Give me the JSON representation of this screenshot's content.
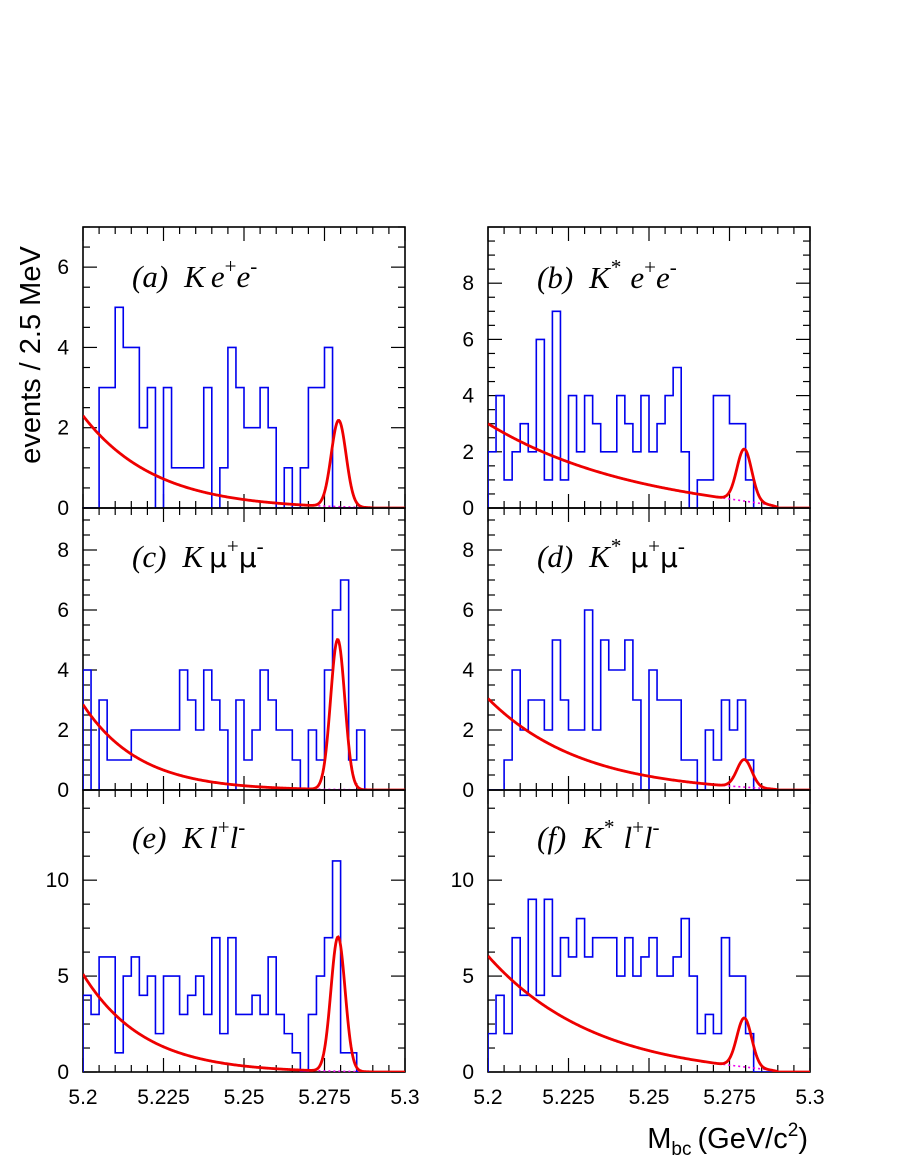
{
  "chart_data": {
    "type": "histogram",
    "ylabel": "events / 2.5 MeV",
    "xlabel_main": "M",
    "xlabel_sub": "bc",
    "xlabel_unit": "(GeV/c",
    "xlabel_unit_sup": "2",
    "xlabel_unit_close": ")",
    "xlim": [
      5.2,
      5.3
    ],
    "xticks": [
      5.2,
      5.225,
      5.25,
      5.275,
      5.3
    ],
    "xtick_labels": [
      "5.2",
      "5.225",
      "5.25",
      "5.275",
      "5.3"
    ],
    "bin_width": 0.0025,
    "bin_start": 5.2,
    "colors": {
      "histogram": "#0000ee",
      "fit": "#ee0000",
      "background": "#ee00ee"
    },
    "panels": [
      {
        "id": "a",
        "label": {
          "tag": "(a)",
          "particle": "K",
          "sep": "",
          "lepton": "e",
          "sup1": "+",
          "lepton2": "e",
          "sup2": "-"
        },
        "ylim": [
          0,
          7
        ],
        "yticks": [
          0,
          2,
          4,
          6
        ],
        "ytick_labels": [
          "0",
          "2",
          "4",
          "6"
        ],
        "counts": [
          0,
          0,
          3,
          3,
          5,
          4,
          4,
          2,
          3,
          0,
          3,
          1,
          1,
          1,
          1,
          3,
          0,
          1,
          4,
          3,
          2,
          2,
          3,
          2,
          0,
          1,
          0,
          1,
          3,
          3,
          4,
          0,
          0,
          0,
          0,
          0,
          0,
          0,
          0,
          0
        ],
        "fit": {
          "norm": 2.3,
          "slope": 1.0,
          "peak": 2.15,
          "mean": 5.2794,
          "sigma": 0.0023
        }
      },
      {
        "id": "b",
        "label": {
          "tag": "(b)",
          "particle": "K",
          "star": "*",
          "lepton": "e",
          "sup1": "+",
          "lepton2": "e",
          "sup2": "-"
        },
        "ylim": [
          0,
          10
        ],
        "yticks": [
          0,
          2,
          4,
          6,
          8
        ],
        "ytick_labels": [
          "0",
          "2",
          "4",
          "6",
          "8"
        ],
        "counts": [
          2,
          4,
          1,
          2,
          3,
          2,
          6,
          1,
          7,
          1,
          4,
          2,
          4,
          3,
          2,
          2,
          4,
          3,
          2,
          4,
          2,
          3,
          4,
          5,
          2,
          0,
          1,
          1,
          4,
          4,
          3,
          3,
          1,
          0,
          0,
          0,
          0,
          0,
          0,
          0
        ],
        "fit": {
          "norm": 3.0,
          "slope": 0.45,
          "peak": 1.85,
          "mean": 5.2796,
          "sigma": 0.0023
        }
      },
      {
        "id": "c",
        "label": {
          "tag": "(c)",
          "particle": "K",
          "lepton": "μ",
          "sup1": "+",
          "lepton2": "μ",
          "sup2": "-"
        },
        "ylim": [
          0,
          9.4
        ],
        "yticks": [
          0,
          2,
          4,
          6,
          8
        ],
        "ytick_labels": [
          "0",
          "2",
          "4",
          "6",
          "8"
        ],
        "counts": [
          4,
          0,
          3,
          1,
          1,
          1,
          2,
          2,
          2,
          2,
          2,
          2,
          4,
          3,
          2,
          4,
          3,
          2,
          0,
          3,
          1,
          2,
          4,
          3,
          2,
          2,
          1,
          0,
          2,
          1,
          4,
          6,
          7,
          1,
          2,
          0,
          0,
          0,
          0,
          0
        ],
        "fit": {
          "norm": 2.85,
          "slope": 1.3,
          "peak": 5.0,
          "mean": 5.2791,
          "sigma": 0.0022
        }
      },
      {
        "id": "d",
        "label": {
          "tag": "(d)",
          "particle": "K",
          "star": "*",
          "lepton": "μ",
          "sup1": "+",
          "lepton2": "μ",
          "sup2": "-"
        },
        "ylim": [
          0,
          9.4
        ],
        "yticks": [
          0,
          2,
          4,
          6,
          8
        ],
        "ytick_labels": [
          "0",
          "2",
          "4",
          "6",
          "8"
        ],
        "counts": [
          0,
          0,
          1,
          4,
          2,
          3,
          3,
          2,
          5,
          3,
          2,
          2,
          6,
          2,
          5,
          4,
          4,
          5,
          3,
          0,
          4,
          3,
          3,
          3,
          1,
          1,
          0,
          2,
          1,
          3,
          2,
          3,
          1,
          0,
          0,
          0,
          0,
          0,
          0,
          0
        ],
        "fit": {
          "norm": 3.05,
          "slope": 0.75,
          "peak": 0.92,
          "mean": 5.2796,
          "sigma": 0.0023
        }
      },
      {
        "id": "e",
        "label": {
          "tag": "(e)",
          "particle": "K",
          "lepton": "l",
          "sup1": "+",
          "lepton2": "l",
          "sup2": "-"
        },
        "ylim": [
          0,
          14.7
        ],
        "yticks": [
          0,
          5,
          10
        ],
        "ytick_labels": [
          "0",
          "5",
          "10"
        ],
        "counts": [
          4,
          3,
          6,
          6,
          1,
          5,
          6,
          4,
          5,
          2,
          5,
          5,
          3,
          4,
          5,
          3,
          7,
          2,
          7,
          3,
          3,
          4,
          3,
          6,
          3,
          2,
          1,
          0,
          3,
          5,
          7,
          11,
          1,
          1,
          0,
          0,
          0,
          0,
          0,
          0
        ],
        "fit": {
          "norm": 5.1,
          "slope": 1.2,
          "peak": 7.0,
          "mean": 5.2792,
          "sigma": 0.0022
        }
      },
      {
        "id": "f",
        "label": {
          "tag": "(f)",
          "particle": "K",
          "star": "*",
          "lepton": "l",
          "sup1": "+",
          "lepton2": "l",
          "sup2": "-"
        },
        "ylim": [
          0,
          14.7
        ],
        "yticks": [
          0,
          5,
          10
        ],
        "ytick_labels": [
          "0",
          "5",
          "10"
        ],
        "counts": [
          2,
          4,
          2,
          7,
          4,
          9,
          4,
          9,
          5,
          7,
          6,
          8,
          6,
          7,
          7,
          7,
          5,
          7,
          5,
          6,
          7,
          5,
          5,
          6,
          8,
          5,
          2,
          3,
          2,
          7,
          5,
          5,
          2,
          0,
          0,
          0,
          0,
          0,
          0,
          0
        ],
        "fit": {
          "norm": 6.05,
          "slope": 0.65,
          "peak": 2.55,
          "mean": 5.2796,
          "sigma": 0.0023
        }
      }
    ]
  }
}
